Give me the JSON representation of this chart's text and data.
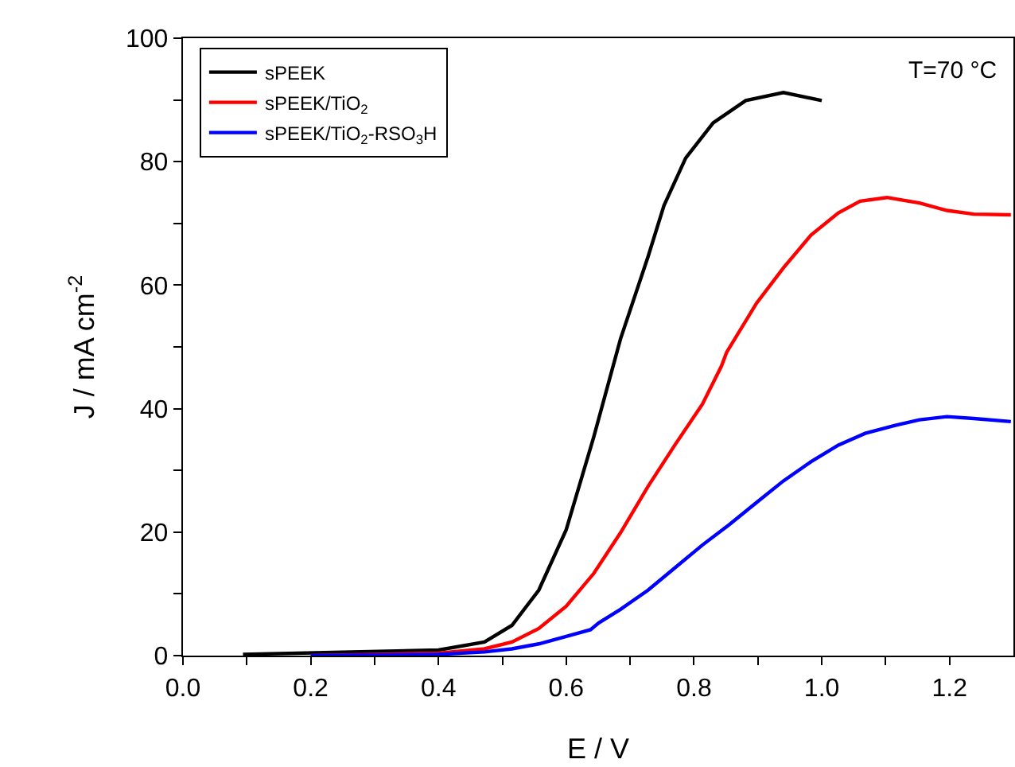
{
  "chart_data": {
    "type": "line",
    "xlabel": "E / V",
    "ylabel": "J / mA cm$^{-2}$",
    "annotations": [
      "T=70 °C"
    ],
    "xlim": [
      0,
      1.3
    ],
    "xticks": [
      "0.0",
      {
        "value": 0.1,
        "label": null
      },
      {
        "value": 0.2,
        "label": "0.2"
      },
      {
        "value": 0.3,
        "label": null
      },
      {
        "value": 0.4,
        "label": "0.4"
      },
      {
        "value": 0.5,
        "label": null
      },
      {
        "value": 0.6,
        "label": "0.6"
      },
      {
        "value": 0.7,
        "label": null
      },
      {
        "value": 0.8,
        "label": "0.8"
      },
      {
        "value": 0.9,
        "label": null
      },
      {
        "value": 1.0,
        "label": "1.0"
      },
      {
        "value": 1.1,
        "label": null
      },
      {
        "value": 1.2,
        "label": "1.2"
      }
    ],
    "ylim": [
      0,
      100
    ],
    "yticks": [
      0,
      {
        "value": 10,
        "label": null
      },
      20,
      {
        "value": 30,
        "label": null
      },
      40,
      {
        "value": 50,
        "label": null
      },
      60,
      {
        "value": 70,
        "label": null
      },
      80,
      {
        "value": 90,
        "label": null
      },
      100
    ],
    "grid": false,
    "legend": "top left",
    "marker": "none",
    "line_style": "solid",
    "series": [
      {
        "name": "sPEEK",
        "color": "#000000",
        "x": [
          0.094,
          0.4,
          0.472,
          0.515,
          0.557,
          0.6,
          0.643,
          0.685,
          0.728,
          0.753,
          0.787,
          0.83,
          0.881,
          0.94,
          1.0
        ],
        "values": [
          0.2,
          0.9,
          2.2,
          4.9,
          10.6,
          20.4,
          35.4,
          51.3,
          64.6,
          72.9,
          80.6,
          86.3,
          89.9,
          91.2,
          89.9
        ]
      },
      {
        "name": "sPEEK/TiO$_{2}$",
        "color": "#ff0000",
        "x": [
          0.2,
          0.4,
          0.472,
          0.515,
          0.557,
          0.6,
          0.643,
          0.685,
          0.728,
          0.77,
          0.813,
          0.843,
          0.851,
          0.898,
          0.94,
          0.983,
          1.026,
          1.06,
          1.102,
          1.153,
          1.196,
          1.238,
          1.296
        ],
        "values": [
          0,
          0.4,
          1.1,
          2.2,
          4.4,
          8.0,
          13.3,
          19.9,
          27.4,
          34.1,
          40.7,
          46.9,
          49.1,
          57.1,
          62.8,
          68.1,
          71.7,
          73.6,
          74.2,
          73.3,
          72.1,
          71.5,
          71.4
        ]
      },
      {
        "name": "sPEEK/TiO$_{2}$-RSO$_{3}$H",
        "color": "#0000ff",
        "x": [
          0.2,
          0.4,
          0.472,
          0.515,
          0.557,
          0.6,
          0.638,
          0.651,
          0.685,
          0.728,
          0.77,
          0.813,
          0.855,
          0.898,
          0.94,
          0.983,
          1.026,
          1.068,
          1.115,
          1.153,
          1.196,
          1.238,
          1.296
        ],
        "values": [
          0,
          0.2,
          0.6,
          1.1,
          1.9,
          3.1,
          4.2,
          5.3,
          7.5,
          10.6,
          14.2,
          17.9,
          21.2,
          24.8,
          28.3,
          31.4,
          34.1,
          36.0,
          37.3,
          38.2,
          38.7,
          38.4,
          37.9
        ]
      }
    ]
  }
}
